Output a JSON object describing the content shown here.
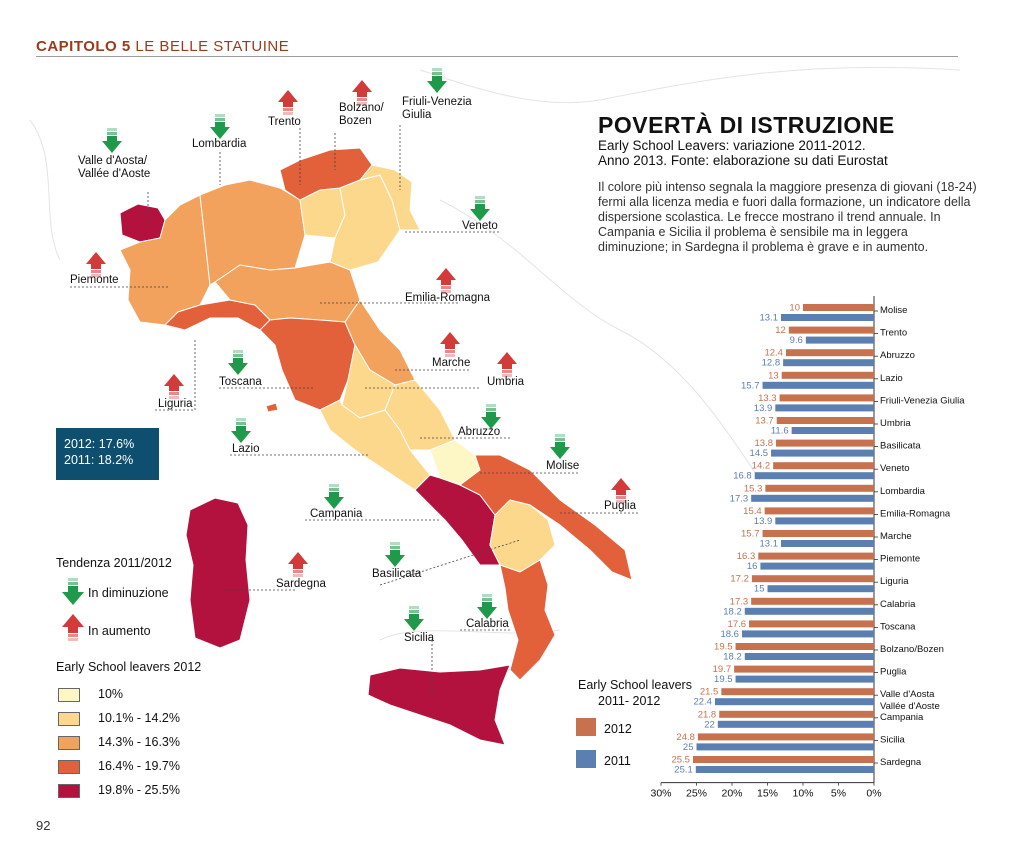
{
  "header": {
    "chapter": "CAPITOLO 5",
    "section": "LE BELLE STATUINE"
  },
  "page_number": "92",
  "title": "POVERTÀ DI ISTRUZIONE",
  "subtitle_1": "Early School Leavers: variazione 2011-2012.",
  "subtitle_2": "Anno 2013. Fonte: elaborazione su dati Eurostat",
  "description": "Il colore più intenso segnala la maggiore presenza di giovani (18-24) fermi alla licenza media e fuori dalla formazione, un indicatore della dispersione scolastica. Le frecce mostrano il trend annuale. In Campania e Sicilia il problema è sensibile ma in leggera diminuzione; in Sardegna il problema è grave e in aumento.",
  "national": {
    "line1": "2012: 17.6%",
    "line2": "2011: 18.2%"
  },
  "colors": {
    "c10": "#fdf7c6",
    "c14": "#fbd88b",
    "c16": "#f2a25c",
    "c19": "#e2603a",
    "c25": "#b3123f",
    "bar2012": "#c8714f",
    "bar2011": "#5a7fb0",
    "arrow_up": "#d33a3a",
    "arrow_down": "#1e9a4a",
    "natbox": "#0e4f70"
  },
  "trend_legend": {
    "title": "Tendenza 2011/2012",
    "down_label": "In diminuzione",
    "up_label": "In aumento",
    "down_icon": "arrow-down-icon",
    "up_icon": "arrow-up-icon"
  },
  "map_legend": {
    "title": "Early School leavers 2012",
    "items": [
      {
        "label": "10%",
        "color": "#fdf7c6"
      },
      {
        "label": "10.1% - 14.2%",
        "color": "#fbd88b"
      },
      {
        "label": "14.3% - 16.3%",
        "color": "#f2a25c"
      },
      {
        "label": "16.4% - 19.7%",
        "color": "#e2603a"
      },
      {
        "label": "19.8% - 25.5%",
        "color": "#b3123f"
      }
    ]
  },
  "bar_legend": {
    "title_1": "Early School leavers",
    "title_2": "2011- 2012",
    "label_2012": "2012",
    "label_2011": "2011"
  },
  "map_labels": [
    {
      "key": "trento",
      "text": "Trento",
      "trend": "up"
    },
    {
      "key": "bolzano",
      "text": "Bolzano/\nBozen",
      "trend": "up"
    },
    {
      "key": "friuli",
      "text": "Friuli-Venezia\nGiulia",
      "trend": "down"
    },
    {
      "key": "lombardia",
      "text": "Lombardia",
      "trend": "down"
    },
    {
      "key": "valle",
      "text": "Valle d'Aosta/\nVallée d'Aoste",
      "trend": "down"
    },
    {
      "key": "veneto",
      "text": "Veneto",
      "trend": "down"
    },
    {
      "key": "piemonte",
      "text": "Piemonte",
      "trend": "up"
    },
    {
      "key": "emilia",
      "text": "Emilia-Romagna",
      "trend": "up"
    },
    {
      "key": "marche",
      "text": "Marche",
      "trend": "up"
    },
    {
      "key": "umbria",
      "text": "Umbria",
      "trend": "up"
    },
    {
      "key": "liguria",
      "text": "Liguria",
      "trend": "up"
    },
    {
      "key": "toscana",
      "text": "Toscana",
      "trend": "down"
    },
    {
      "key": "abruzzo",
      "text": "Abruzzo",
      "trend": "down"
    },
    {
      "key": "lazio",
      "text": "Lazio",
      "trend": "down"
    },
    {
      "key": "molise",
      "text": "Molise",
      "trend": "down"
    },
    {
      "key": "puglia",
      "text": "Puglia",
      "trend": "up"
    },
    {
      "key": "campania",
      "text": "Campania",
      "trend": "down"
    },
    {
      "key": "basilicata",
      "text": "Basilicata",
      "trend": "down"
    },
    {
      "key": "sardegna",
      "text": "Sardegna",
      "trend": "up"
    },
    {
      "key": "calabria",
      "text": "Calabria",
      "trend": "down"
    },
    {
      "key": "sicilia",
      "text": "Sicilia",
      "trend": "down"
    }
  ],
  "chart_data": {
    "type": "bar",
    "orientation": "horizontal",
    "x_axis_reversed": true,
    "xlim": [
      0,
      30
    ],
    "xticks": [
      "30%",
      "25%",
      "20%",
      "15%",
      "10%",
      "5%",
      "0%"
    ],
    "categories": [
      "Molise",
      "Trento",
      "Abruzzo",
      "Lazio",
      "Friuli-Venezia Giulia",
      "Umbria",
      "Basilicata",
      "Veneto",
      "Lombardia",
      "Emilia-Romagna",
      "Marche",
      "Piemonte",
      "Liguria",
      "Calabria",
      "Toscana",
      "Bolzano/Bozen",
      "Puglia",
      "Valle d'Aosta\nVallée d'Aoste",
      "Campania",
      "Sicilia",
      "Sardegna"
    ],
    "series": [
      {
        "name": "2012",
        "values": [
          10,
          12,
          12.4,
          13,
          13.3,
          13.7,
          13.8,
          14.2,
          15.3,
          15.4,
          15.7,
          16.3,
          17.2,
          17.3,
          17.6,
          19.5,
          19.7,
          21.5,
          21.8,
          24.8,
          25.5
        ]
      },
      {
        "name": "2011",
        "values": [
          13.1,
          9.6,
          12.8,
          15.7,
          13.9,
          11.6,
          14.5,
          16.8,
          17.3,
          13.9,
          13.1,
          16,
          15,
          18.2,
          18.6,
          18.2,
          19.5,
          22.4,
          22,
          25,
          25.1
        ]
      }
    ]
  }
}
